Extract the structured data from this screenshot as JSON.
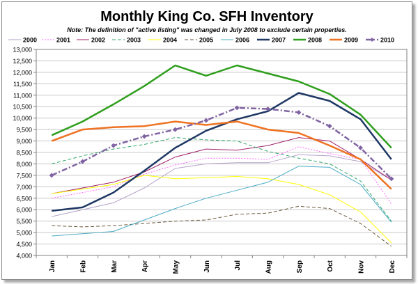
{
  "chart_data": {
    "type": "line",
    "title": "Monthly King Co. SFH Inventory",
    "subtitle": "Note: The definition of \"active listing\" was changed in July 2008 to exclude certain properties.",
    "categories": [
      "Jan",
      "Feb",
      "Mar",
      "Apr",
      "May",
      "Jun",
      "Jul",
      "Aug",
      "Sep",
      "Oct",
      "Nov",
      "Dec"
    ],
    "ylim": [
      4000,
      13000
    ],
    "ytick_step": 500,
    "yticks": [
      "4,000",
      "4,500",
      "5,000",
      "5,500",
      "6,000",
      "6,500",
      "7,000",
      "7,500",
      "8,000",
      "8,500",
      "9,000",
      "9,500",
      "10,000",
      "10,500",
      "11,000",
      "11,500",
      "12,000",
      "12,500",
      "13,000"
    ],
    "grid": true,
    "legend_position": "top",
    "series": [
      {
        "name": "2000",
        "color": "#b3a2c7",
        "style": "solid",
        "width": 1,
        "marker": false,
        "values": [
          5700,
          6000,
          6300,
          6950,
          7800,
          8000,
          8050,
          8050,
          8400,
          8350,
          8100,
          7300
        ]
      },
      {
        "name": "2001",
        "color": "#ff66ff",
        "style": "dotted",
        "width": 1,
        "marker": false,
        "values": [
          6500,
          6750,
          7000,
          7550,
          7950,
          8250,
          8250,
          8200,
          8750,
          8450,
          8200,
          6250
        ]
      },
      {
        "name": "2002",
        "color": "#a0206a",
        "style": "solid",
        "width": 1,
        "marker": false,
        "values": [
          6700,
          6950,
          7200,
          7650,
          8300,
          8650,
          8600,
          8800,
          9150,
          9000,
          8200,
          7300
        ]
      },
      {
        "name": "2003",
        "color": "#33a86a",
        "style": "dashed",
        "width": 1,
        "marker": false,
        "values": [
          8000,
          8350,
          8650,
          8850,
          9150,
          9050,
          9000,
          8550,
          8250,
          8000,
          7250,
          5500
        ]
      },
      {
        "name": "2004",
        "color": "#ffff00",
        "style": "solid",
        "width": 1,
        "marker": false,
        "values": [
          6700,
          6900,
          7100,
          7500,
          7350,
          7400,
          7450,
          7350,
          7100,
          6650,
          5900,
          4550
        ]
      },
      {
        "name": "2005",
        "color": "#6b5a3b",
        "style": "dashed",
        "width": 1,
        "marker": false,
        "values": [
          5300,
          5250,
          5300,
          5400,
          5500,
          5550,
          5800,
          5850,
          6150,
          6050,
          5400,
          4400
        ]
      },
      {
        "name": "2006",
        "color": "#4bacc6",
        "style": "solid",
        "width": 1,
        "marker": false,
        "values": [
          4850,
          4950,
          5050,
          5550,
          6050,
          6500,
          6850,
          7200,
          7900,
          7850,
          7100,
          5450
        ]
      },
      {
        "name": "2007",
        "color": "#1f3864",
        "style": "solid",
        "width": 2.5,
        "marker": false,
        "values": [
          5950,
          6100,
          6750,
          7700,
          8700,
          9450,
          9950,
          10300,
          11100,
          10750,
          9950,
          8200
        ]
      },
      {
        "name": "2008",
        "color": "#2e9e1c",
        "style": "solid",
        "width": 2.5,
        "marker": false,
        "values": [
          9250,
          9850,
          10600,
          11400,
          12300,
          11850,
          12300,
          11950,
          11600,
          11050,
          10150,
          8700
        ]
      },
      {
        "name": "2009",
        "color": "#ee7221",
        "style": "solid",
        "width": 2.5,
        "marker": false,
        "values": [
          9000,
          9500,
          9600,
          9650,
          9850,
          9700,
          9850,
          9500,
          9350,
          8800,
          8200,
          6900
        ]
      },
      {
        "name": "2010",
        "color": "#8064a2",
        "style": "dashdot",
        "width": 2.5,
        "marker": true,
        "values": [
          7500,
          8100,
          8800,
          9200,
          9500,
          9900,
          10450,
          10400,
          10250,
          9650,
          8700,
          7350
        ]
      }
    ]
  }
}
